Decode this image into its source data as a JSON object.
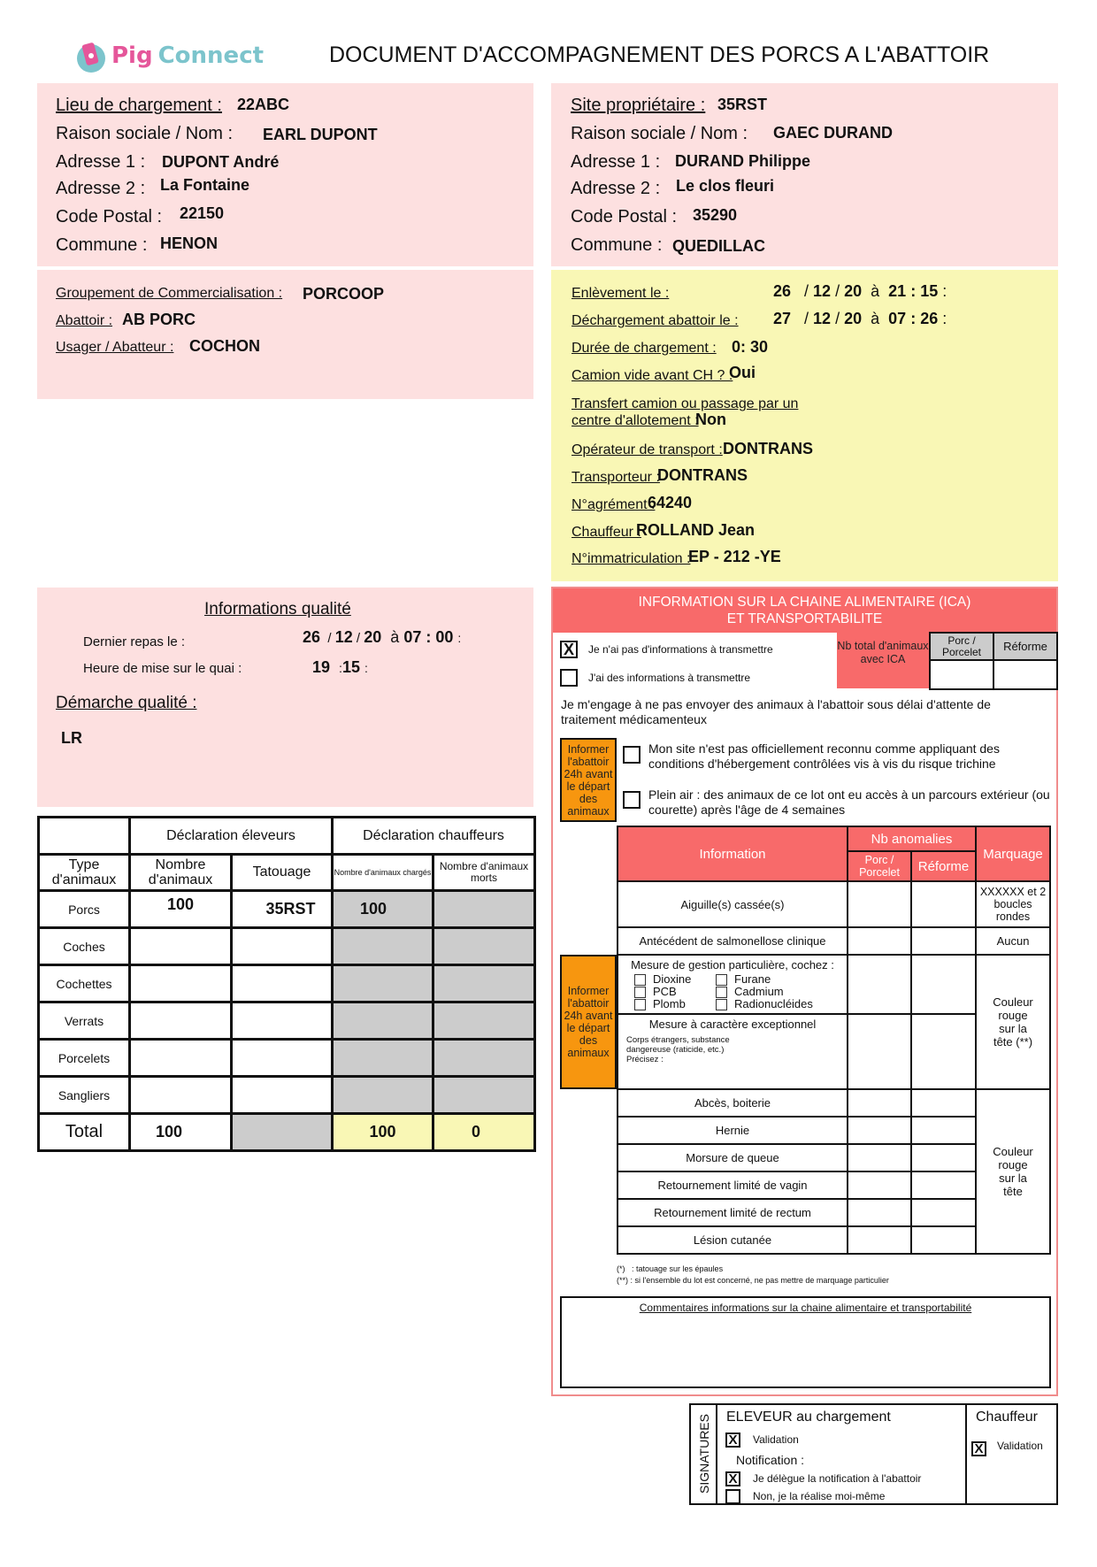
{
  "header": {
    "logo_word1": "Pig",
    "logo_word2": "Connect",
    "title": "DOCUMENT D'ACCOMPAGNEMENT DES PORCS A L'ABATTOIR"
  },
  "loading_site": {
    "label": "Lieu de chargement :",
    "value": "22ABC",
    "name_label": "Raison sociale / Nom :",
    "name": "EARL DUPONT",
    "addr1_label": "Adresse 1 :",
    "addr1": "DUPONT André",
    "addr2_label": "Adresse 2 :",
    "addr2": "La Fontaine",
    "cp_label": "Code Postal :",
    "cp": "22150",
    "commune_label": "Commune :",
    "commune": "HENON"
  },
  "owner_site": {
    "label": "Site propriétaire :",
    "value": "35RST",
    "name_label": "Raison sociale / Nom :",
    "name": "GAEC DURAND",
    "addr1_label": "Adresse 1 :",
    "addr1": "DURAND Philippe",
    "addr2_label": "Adresse 2 :",
    "addr2": "Le clos fleuri",
    "cp_label": "Code Postal :",
    "cp": "35290",
    "commune_label": "Commune :",
    "commune": "QUEDILLAC"
  },
  "commercial": {
    "groupement_label": "Groupement de Commercialisation :",
    "groupement": "PORCOOP",
    "abattoir_label": "Abattoir :",
    "abattoir": "AB PORC",
    "usager_label": "Usager / Abatteur :",
    "usager": "COCHON"
  },
  "transport": {
    "enlevement_label": "Enlèvement le :",
    "enlevement": {
      "d": "26",
      "m": "12",
      "y": "20",
      "h": "21",
      "min": "15"
    },
    "dechargement_label": "Déchargement abattoir le :",
    "dechargement": {
      "d": "27",
      "m": "12",
      "y": "20",
      "h": "07",
      "min": "26"
    },
    "a": "à",
    "duree_label": "Durée de chargement :",
    "duree": "0: 30",
    "camion_label": "Camion vide avant CH ? :",
    "camion": "Oui",
    "transfert_label1": "Transfert camion ou passage par un",
    "transfert_label2": "centre d'allotement :",
    "transfert": "Non",
    "operateur_label": "Opérateur de transport :",
    "operateur": "DONTRANS",
    "transporteur_label": "Transporteur :",
    "transporteur": "DONTRANS",
    "agrement_label": "N°agrément :",
    "agrement": "64240",
    "chauffeur_label": "Chauffeur :",
    "chauffeur": "ROLLAND Jean",
    "immat_label": "N°immatriculation :",
    "immat": "EP - 212 -YE"
  },
  "quality": {
    "title": "Informations qualité",
    "repas_label": "Dernier repas le :",
    "repas": {
      "d": "26",
      "m": "12",
      "y": "20",
      "h": "07",
      "min": "00"
    },
    "a": "à",
    "quai_label": "Heure de mise sur le quai :",
    "quai": {
      "h": "19",
      "min": "15"
    },
    "demarche_label": "Démarche qualité :",
    "demarche": "LR"
  },
  "animals_table": {
    "group_eleveurs": "Déclaration éleveurs",
    "group_chauffeurs": "Déclaration chauffeurs",
    "headers": [
      "Type d'animaux",
      "Nombre d'animaux",
      "Tatouage",
      "Nombre d'animaux chargés",
      "Nombre d'animaux morts"
    ],
    "rows": [
      {
        "type": "Porcs",
        "nombre": "100",
        "tatouage": "35RST",
        "charges": "100",
        "morts": ""
      },
      {
        "type": "Coches",
        "nombre": "",
        "tatouage": "",
        "charges": "",
        "morts": ""
      },
      {
        "type": "Cochettes",
        "nombre": "",
        "tatouage": "",
        "charges": "",
        "morts": ""
      },
      {
        "type": "Verrats",
        "nombre": "",
        "tatouage": "",
        "charges": "",
        "morts": ""
      },
      {
        "type": "Porcelets",
        "nombre": "",
        "tatouage": "",
        "charges": "",
        "morts": ""
      },
      {
        "type": "Sangliers",
        "nombre": "",
        "tatouage": "",
        "charges": "",
        "morts": ""
      }
    ],
    "total": {
      "label": "Total",
      "nombre": "100",
      "charges": "100",
      "morts": "0"
    }
  },
  "ica": {
    "title1": "INFORMATION SUR LA CHAINE ALIMENTAIRE (ICA)",
    "title2": "ET TRANSPORTABILITE",
    "no_info": {
      "label": "Je n'ai pas d'informations à transmettre",
      "checked": true
    },
    "has_info": {
      "label": "J'ai des informations à transmettre",
      "checked": false
    },
    "nb_total_label": "Nb total d'animaux avec ICA",
    "porc_porcelet": "Porc / Porcelet",
    "reforme": "Réforme",
    "engagement": "Je m'engage à ne pas envoyer des animaux à l'abattoir sous délai d'attente de traitement médicamenteux",
    "informer": "Informer l'abattoir 24h avant le départ des animaux",
    "trichine": {
      "label": "Mon site n'est pas officiellement reconnu comme appliquant des conditions d'hébergement contrôlées vis à vis du risque trichine",
      "checked": false
    },
    "plein_air": {
      "label": "Plein air : des animaux de ce lot ont eu accès à un parcours extérieur (ou courette) après l'âge de 4 semaines",
      "checked": false
    },
    "table_headers": {
      "information": "Information",
      "nb_anomalies": "Nb anomalies",
      "porc_porcelet": "Porc / Porcelet",
      "reforme": "Réforme",
      "marquage": "Marquage"
    },
    "aiguille": "Aiguille(s) cassée(s)",
    "aiguille_marquage": "XXXXXX et 2 boucles rondes",
    "salmonellose": "Antécédent de salmonellose clinique",
    "salmonellose_marquage": "Aucun",
    "mesure_gestion": "Mesure de gestion particulière, cochez :",
    "substances": [
      "Dioxine",
      "Furane",
      "PCB",
      "Cadmium",
      "Plomb",
      "Radionucléides"
    ],
    "mesure_exc": "Mesure à caractère exceptionnel",
    "mesure_exc_detail1": "Corps étrangers, substance",
    "mesure_exc_detail2": "dangereuse (raticide, etc.)",
    "mesure_exc_precisez": "Précisez :",
    "mesure_marquage": "Couleur rouge sur la tête (**)",
    "lesions": [
      "Abcès, boiterie",
      "Hernie",
      "Morsure de queue",
      "Retournement limité de vagin",
      "Retournement limité de rectum",
      "Lésion cutanée"
    ],
    "lesions_marquage": "Couleur rouge sur la tête",
    "footnote1": "(*)   : tatouage sur les épaules",
    "footnote2": "(**) : si l'ensemble du lot est concerné, ne pas mettre de marquage particulier",
    "comments_label": "Commentaires informations sur la chaine alimentaire et transportabilité"
  },
  "signatures": {
    "side": "SIGNATURES",
    "eleveur_title": "ELEVEUR au chargement",
    "validation": "Validation",
    "notification": "Notification :",
    "delegue": "Je délègue la notification à l'abattoir",
    "moi_meme": "Non, je la réalise moi-même",
    "chauffeur_title": "Chauffeur",
    "chauffeur_validation": "Validation",
    "checks": {
      "eleveur_validation": true,
      "delegue": true,
      "moi_meme": false,
      "chauffeur_validation": true
    }
  },
  "colors": {
    "pink": "#fde0e0",
    "yellow": "#f9f7b5",
    "red": "#f86a6a",
    "orange": "#f7960f",
    "grey": "#cccccc",
    "logo_pink": "#e5569a",
    "logo_teal": "#7cc4cc"
  }
}
